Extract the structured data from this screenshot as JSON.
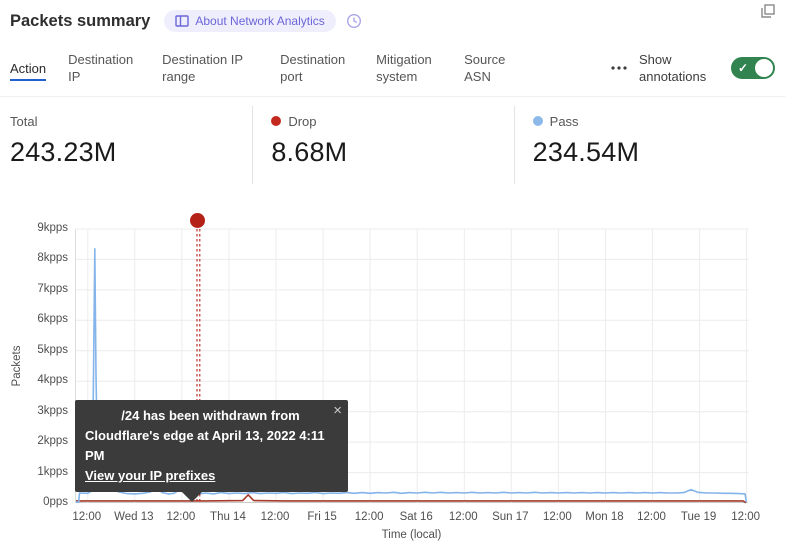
{
  "header": {
    "title": "Packets summary",
    "badge_label": "About Network Analytics"
  },
  "tabs": {
    "items": [
      {
        "label": "Action",
        "active": true
      },
      {
        "label": "Destination IP",
        "active": false
      },
      {
        "label": "Destination IP range",
        "active": false
      },
      {
        "label": "Destination port",
        "active": false
      },
      {
        "label": "Mitigation system",
        "active": false
      },
      {
        "label": "Source ASN",
        "active": false
      }
    ],
    "show_annotations_label": "Show annotations",
    "annotations_toggle_on": true,
    "toggle_color": "#31834f",
    "active_underline_color": "#2160d3"
  },
  "stats": [
    {
      "label": "Total",
      "value": "243.23M",
      "dot_color": null
    },
    {
      "label": "Drop",
      "value": "8.68M",
      "dot_color": "#c22a20"
    },
    {
      "label": "Pass",
      "value": "234.54M",
      "dot_color": "#8db9ea"
    }
  ],
  "tooltip": {
    "line1": "/24 has been withdrawn from",
    "line2": "Cloudflare's edge at April 13, 2022 4:11 PM",
    "link_label": "View your IP prefixes",
    "close_glyph": "×"
  },
  "chart_data": {
    "type": "line",
    "title": "Packets summary",
    "ylabel": "Packets",
    "xlabel": "Time (local)",
    "ylim": [
      0,
      9
    ],
    "y_unit": "kpps",
    "grid": true,
    "x_domain_hours": [
      -3,
      168.6
    ],
    "x_ticks": [
      {
        "h": 0,
        "label": "12:00"
      },
      {
        "h": 12,
        "label": "Wed 13"
      },
      {
        "h": 24,
        "label": "12:00"
      },
      {
        "h": 36,
        "label": "Thu 14"
      },
      {
        "h": 48,
        "label": "12:00"
      },
      {
        "h": 60,
        "label": "Fri 15"
      },
      {
        "h": 72,
        "label": "12:00"
      },
      {
        "h": 84,
        "label": "Sat 16"
      },
      {
        "h": 96,
        "label": "12:00"
      },
      {
        "h": 108,
        "label": "Sun 17"
      },
      {
        "h": 120,
        "label": "12:00"
      },
      {
        "h": 132,
        "label": "Mon 18"
      },
      {
        "h": 144,
        "label": "12:00"
      },
      {
        "h": 156,
        "label": "Tue 19"
      },
      {
        "h": 168,
        "label": "12:00"
      }
    ],
    "y_ticks": [
      {
        "v": 0,
        "label": "0pps"
      },
      {
        "v": 1,
        "label": "1kpps"
      },
      {
        "v": 2,
        "label": "2kpps"
      },
      {
        "v": 3,
        "label": "3kpps"
      },
      {
        "v": 4,
        "label": "4kpps"
      },
      {
        "v": 5,
        "label": "5kpps"
      },
      {
        "v": 6,
        "label": "6kpps"
      },
      {
        "v": 7,
        "label": "7kpps"
      },
      {
        "v": 8,
        "label": "8kpps"
      },
      {
        "v": 9,
        "label": "9kpps"
      }
    ],
    "annotation": {
      "h": 28.2,
      "color": "#b32117",
      "event_time": "April 13, 2022 4:11 PM"
    },
    "series": [
      {
        "name": "Pass",
        "color": "#85b4ea",
        "points": [
          [
            -3,
            0.03
          ],
          [
            -2.3,
            0.03
          ],
          [
            -2.1,
            0.33
          ],
          [
            0,
            0.32
          ],
          [
            0.8,
            0.38
          ],
          [
            1.2,
            1.2
          ],
          [
            1.5,
            4.5
          ],
          [
            1.8,
            8.35
          ],
          [
            2.1,
            4.2
          ],
          [
            2.5,
            1.1
          ],
          [
            3.2,
            0.85
          ],
          [
            4.5,
            0.6
          ],
          [
            6,
            0.45
          ],
          [
            8,
            0.36
          ],
          [
            10,
            0.31
          ],
          [
            12,
            0.3
          ],
          [
            14,
            0.32
          ],
          [
            16,
            0.36
          ],
          [
            17.3,
            0.5
          ],
          [
            18,
            0.45
          ],
          [
            19,
            0.34
          ],
          [
            20.5,
            0.3
          ],
          [
            22,
            0.32
          ],
          [
            23.5,
            0.44
          ],
          [
            24.8,
            0.48
          ],
          [
            25.8,
            0.36
          ],
          [
            27,
            0.31
          ],
          [
            28.5,
            0.3
          ],
          [
            30,
            0.33
          ],
          [
            32,
            0.3
          ],
          [
            34,
            0.34
          ],
          [
            36,
            0.31
          ],
          [
            38,
            0.33
          ],
          [
            40,
            0.31
          ],
          [
            42,
            0.34
          ],
          [
            44,
            0.31
          ],
          [
            46,
            0.33
          ],
          [
            48,
            0.32
          ],
          [
            50,
            0.34
          ],
          [
            52,
            0.31
          ],
          [
            54,
            0.33
          ],
          [
            56,
            0.32
          ],
          [
            58,
            0.34
          ],
          [
            60,
            0.31
          ],
          [
            62,
            0.33
          ],
          [
            64,
            0.32
          ],
          [
            66,
            0.34
          ],
          [
            68,
            0.32
          ],
          [
            70,
            0.34
          ],
          [
            72,
            0.32
          ],
          [
            74,
            0.34
          ],
          [
            76,
            0.33
          ],
          [
            78,
            0.35
          ],
          [
            80,
            0.32
          ],
          [
            82,
            0.34
          ],
          [
            84,
            0.33
          ],
          [
            86,
            0.35
          ],
          [
            88,
            0.33
          ],
          [
            90,
            0.35
          ],
          [
            92,
            0.33
          ],
          [
            94,
            0.34
          ],
          [
            96,
            0.33
          ],
          [
            98,
            0.35
          ],
          [
            100,
            0.33
          ],
          [
            102,
            0.34
          ],
          [
            104,
            0.33
          ],
          [
            106,
            0.35
          ],
          [
            108,
            0.33
          ],
          [
            110,
            0.34
          ],
          [
            112,
            0.33
          ],
          [
            114,
            0.35
          ],
          [
            116,
            0.33
          ],
          [
            118,
            0.34
          ],
          [
            120,
            0.33
          ],
          [
            122,
            0.34
          ],
          [
            124,
            0.33
          ],
          [
            126,
            0.34
          ],
          [
            128,
            0.33
          ],
          [
            130,
            0.34
          ],
          [
            132,
            0.33
          ],
          [
            134,
            0.34
          ],
          [
            136,
            0.33
          ],
          [
            138,
            0.34
          ],
          [
            140,
            0.33
          ],
          [
            142,
            0.34
          ],
          [
            144,
            0.33
          ],
          [
            146,
            0.34
          ],
          [
            148,
            0.33
          ],
          [
            150,
            0.33
          ],
          [
            152,
            0.34
          ],
          [
            153.8,
            0.44
          ],
          [
            155.5,
            0.35
          ],
          [
            158,
            0.33
          ],
          [
            160,
            0.33
          ],
          [
            162,
            0.32
          ],
          [
            164,
            0.32
          ],
          [
            166,
            0.31
          ],
          [
            167.6,
            0.3
          ],
          [
            167.9,
            0.03
          ]
        ]
      },
      {
        "name": "Drop",
        "color": "#a53b2a",
        "points": [
          [
            -3,
            0.07
          ],
          [
            10,
            0.07
          ],
          [
            20,
            0.07
          ],
          [
            30,
            0.07
          ],
          [
            39.5,
            0.08
          ],
          [
            40.9,
            0.27
          ],
          [
            42.3,
            0.08
          ],
          [
            50,
            0.07
          ],
          [
            60,
            0.07
          ],
          [
            70,
            0.07
          ],
          [
            80,
            0.07
          ],
          [
            90,
            0.07
          ],
          [
            100,
            0.07
          ],
          [
            110,
            0.07
          ],
          [
            120,
            0.07
          ],
          [
            130,
            0.07
          ],
          [
            140,
            0.07
          ],
          [
            150,
            0.07
          ],
          [
            160,
            0.07
          ],
          [
            167,
            0.07
          ],
          [
            167.9,
            0.01
          ]
        ]
      }
    ]
  }
}
